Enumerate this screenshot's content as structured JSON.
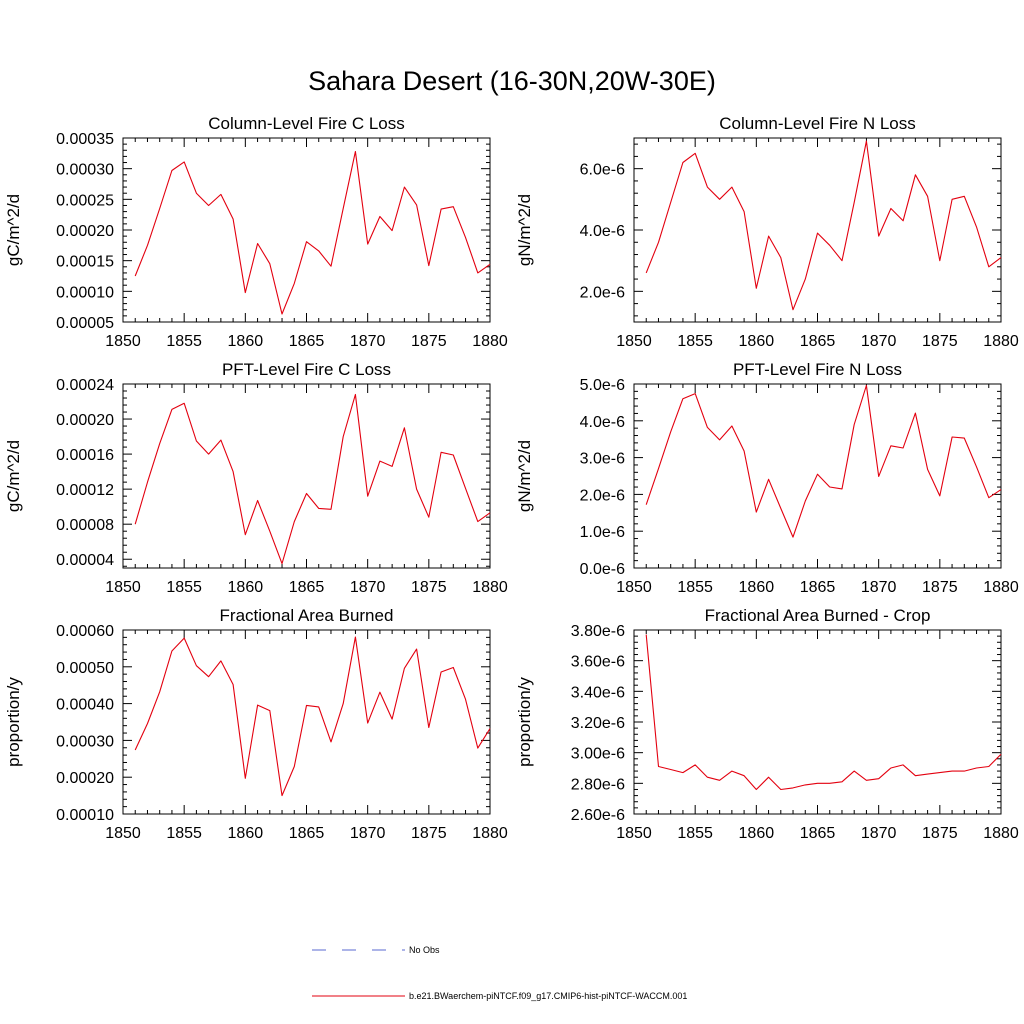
{
  "figure": {
    "title": "Sahara Desert (16-30N,20W-30E)"
  },
  "legend": {
    "obs_label": "No Obs",
    "model_label": "b.e21.BWaerchem-piNTCF.f09_g17.CMIP6-hist-piNTCF-WACCM.001",
    "obs_color": "#5a6ad0",
    "model_color": "#e3000f"
  },
  "chart_data": [
    {
      "type": "line",
      "title": "Column-Level Fire C Loss",
      "ylabel": "gC/m^2/d",
      "xlim": [
        1850,
        1880
      ],
      "ylim": [
        5e-05,
        0.00035
      ],
      "xticks": [
        1850,
        1855,
        1860,
        1865,
        1870,
        1875,
        1880
      ],
      "xtick_labels": [
        "1850",
        "1855",
        "1860",
        "1865",
        "1870",
        "1875",
        "1880"
      ],
      "yticks": [
        5e-05,
        0.0001,
        0.00015,
        0.0002,
        0.00025,
        0.0003,
        0.00035
      ],
      "ytick_labels": [
        "0.00005",
        "0.00010",
        "0.00015",
        "0.00020",
        "0.00025",
        "0.00030",
        "0.00035"
      ],
      "series": [
        {
          "name": "b.e21.BWaerchem-piNTCF.f09_g17.CMIP6-hist-piNTCF-WACCM.001",
          "color": "#e3000f",
          "x": [
            1851,
            1852,
            1853,
            1854,
            1855,
            1856,
            1857,
            1858,
            1859,
            1860,
            1861,
            1862,
            1863,
            1864,
            1865,
            1866,
            1867,
            1868,
            1869,
            1870,
            1871,
            1872,
            1873,
            1874,
            1875,
            1876,
            1877,
            1878,
            1879,
            1880
          ],
          "y": [
            0.000125,
            0.000175,
            0.000235,
            0.000297,
            0.000311,
            0.00026,
            0.00024,
            0.000258,
            0.000218,
            9.8e-05,
            0.000178,
            0.000145,
            6.3e-05,
            0.000113,
            0.000181,
            0.000166,
            0.000141,
            0.000235,
            0.000328,
            0.000177,
            0.000222,
            0.000199,
            0.00027,
            0.000241,
            0.000142,
            0.000234,
            0.000238,
            0.000188,
            0.00013,
            0.000144
          ]
        }
      ]
    },
    {
      "type": "line",
      "title": "Column-Level Fire N Loss",
      "ylabel": "gN/m^2/d",
      "xlim": [
        1850,
        1880
      ],
      "ylim": [
        1e-06,
        7e-06
      ],
      "xticks": [
        1850,
        1855,
        1860,
        1865,
        1870,
        1875,
        1880
      ],
      "xtick_labels": [
        "1850",
        "1855",
        "1860",
        "1865",
        "1870",
        "1875",
        "1880"
      ],
      "yticks": [
        2e-06,
        4e-06,
        6e-06
      ],
      "ytick_labels": [
        "2.0e-6",
        "4.0e-6",
        "6.0e-6"
      ],
      "series": [
        {
          "name": "b.e21.BWaerchem-piNTCF.f09_g17.CMIP6-hist-piNTCF-WACCM.001",
          "color": "#e3000f",
          "x": [
            1851,
            1852,
            1853,
            1854,
            1855,
            1856,
            1857,
            1858,
            1859,
            1860,
            1861,
            1862,
            1863,
            1864,
            1865,
            1866,
            1867,
            1868,
            1869,
            1870,
            1871,
            1872,
            1873,
            1874,
            1875,
            1876,
            1877,
            1878,
            1879,
            1880
          ],
          "y": [
            2.6e-06,
            3.6e-06,
            4.9e-06,
            6.2e-06,
            6.5e-06,
            5.4e-06,
            5e-06,
            5.4e-06,
            4.6e-06,
            2.1e-06,
            3.8e-06,
            3.1e-06,
            1.4e-06,
            2.4e-06,
            3.9e-06,
            3.5e-06,
            3e-06,
            4.9e-06,
            6.9e-06,
            3.8e-06,
            4.7e-06,
            4.3e-06,
            5.8e-06,
            5.1e-06,
            3e-06,
            5e-06,
            5.1e-06,
            4.1e-06,
            2.8e-06,
            3.1e-06
          ]
        }
      ]
    },
    {
      "type": "line",
      "title": "PFT-Level Fire C Loss",
      "ylabel": "gC/m^2/d",
      "xlim": [
        1850,
        1880
      ],
      "ylim": [
        3e-05,
        0.00024
      ],
      "xticks": [
        1850,
        1855,
        1860,
        1865,
        1870,
        1875,
        1880
      ],
      "xtick_labels": [
        "1850",
        "1855",
        "1860",
        "1865",
        "1870",
        "1875",
        "1880"
      ],
      "yticks": [
        4e-05,
        8e-05,
        0.00012,
        0.00016,
        0.0002,
        0.00024
      ],
      "ytick_labels": [
        "0.00004",
        "0.00008",
        "0.00012",
        "0.00016",
        "0.00020",
        "0.00024"
      ],
      "series": [
        {
          "name": "b.e21.BWaerchem-piNTCF.f09_g17.CMIP6-hist-piNTCF-WACCM.001",
          "color": "#e3000f",
          "x": [
            1851,
            1852,
            1853,
            1854,
            1855,
            1856,
            1857,
            1858,
            1859,
            1860,
            1861,
            1862,
            1863,
            1864,
            1865,
            1866,
            1867,
            1868,
            1869,
            1870,
            1871,
            1872,
            1873,
            1874,
            1875,
            1876,
            1877,
            1878,
            1879,
            1880
          ],
          "y": [
            8e-05,
            0.000128,
            0.000172,
            0.000211,
            0.000218,
            0.000175,
            0.00016,
            0.000176,
            0.00014,
            6.8e-05,
            0.000107,
            7.2e-05,
            3.5e-05,
            8.3e-05,
            0.000115,
            9.8e-05,
            9.7e-05,
            0.00018,
            0.000228,
            0.000112,
            0.000152,
            0.000146,
            0.00019,
            0.00012,
            8.8e-05,
            0.000162,
            0.000159,
            0.000121,
            8.3e-05,
            9.3e-05
          ]
        }
      ]
    },
    {
      "type": "line",
      "title": "PFT-Level Fire N Loss",
      "ylabel": "gN/m^2/d",
      "xlim": [
        1850,
        1880
      ],
      "ylim": [
        0,
        5e-06
      ],
      "xticks": [
        1850,
        1855,
        1860,
        1865,
        1870,
        1875,
        1880
      ],
      "xtick_labels": [
        "1850",
        "1855",
        "1860",
        "1865",
        "1870",
        "1875",
        "1880"
      ],
      "yticks": [
        0,
        1e-06,
        2e-06,
        3e-06,
        4e-06,
        5e-06
      ],
      "ytick_labels": [
        "0.0e-6",
        "1.0e-6",
        "2.0e-6",
        "3.0e-6",
        "4.0e-6",
        "5.0e-6"
      ],
      "series": [
        {
          "name": "b.e21.BWaerchem-piNTCF.f09_g17.CMIP6-hist-piNTCF-WACCM.001",
          "color": "#e3000f",
          "x": [
            1851,
            1852,
            1853,
            1854,
            1855,
            1856,
            1857,
            1858,
            1859,
            1860,
            1861,
            1862,
            1863,
            1864,
            1865,
            1866,
            1867,
            1868,
            1869,
            1870,
            1871,
            1872,
            1873,
            1874,
            1875,
            1876,
            1877,
            1878,
            1879,
            1880
          ],
          "y": [
            1.72e-06,
            2.7e-06,
            3.7e-06,
            4.6e-06,
            4.74e-06,
            3.82e-06,
            3.48e-06,
            3.86e-06,
            3.18e-06,
            1.52e-06,
            2.41e-06,
            1.62e-06,
            8.4e-07,
            1.82e-06,
            2.55e-06,
            2.2e-06,
            2.15e-06,
            3.9e-06,
            4.96e-06,
            2.49e-06,
            3.32e-06,
            3.26e-06,
            4.21e-06,
            2.68e-06,
            1.96e-06,
            3.56e-06,
            3.53e-06,
            2.75e-06,
            1.91e-06,
            2.13e-06
          ]
        }
      ]
    },
    {
      "type": "line",
      "title": "Fractional Area Burned",
      "ylabel": "proportion/y",
      "xlim": [
        1850,
        1880
      ],
      "ylim": [
        0.0001,
        0.0006
      ],
      "xticks": [
        1850,
        1855,
        1860,
        1865,
        1870,
        1875,
        1880
      ],
      "xtick_labels": [
        "1850",
        "1855",
        "1860",
        "1865",
        "1870",
        "1875",
        "1880"
      ],
      "yticks": [
        0.0001,
        0.0002,
        0.0003,
        0.0004,
        0.0005,
        0.0006
      ],
      "ytick_labels": [
        "0.00010",
        "0.00020",
        "0.00030",
        "0.00040",
        "0.00050",
        "0.00060"
      ],
      "series": [
        {
          "name": "b.e21.BWaerchem-piNTCF.f09_g17.CMIP6-hist-piNTCF-WACCM.001",
          "color": "#e3000f",
          "x": [
            1851,
            1852,
            1853,
            1854,
            1855,
            1856,
            1857,
            1858,
            1859,
            1860,
            1861,
            1862,
            1863,
            1864,
            1865,
            1866,
            1867,
            1868,
            1869,
            1870,
            1871,
            1872,
            1873,
            1874,
            1875,
            1876,
            1877,
            1878,
            1879,
            1880
          ],
          "y": [
            0.000274,
            0.000346,
            0.000432,
            0.000543,
            0.000578,
            0.000503,
            0.000473,
            0.000516,
            0.000452,
            0.000197,
            0.000396,
            0.000381,
            0.00015,
            0.000229,
            0.000395,
            0.000391,
            0.000296,
            0.0004,
            0.000581,
            0.000347,
            0.000431,
            0.000358,
            0.000496,
            0.000548,
            0.000335,
            0.000486,
            0.000498,
            0.000412,
            0.000279,
            0.000332
          ]
        }
      ]
    },
    {
      "type": "line",
      "title": "Fractional Area Burned - Crop",
      "ylabel": "proportion/y",
      "xlim": [
        1850,
        1880
      ],
      "ylim": [
        2.6e-06,
        3.8e-06
      ],
      "xticks": [
        1850,
        1855,
        1860,
        1865,
        1870,
        1875,
        1880
      ],
      "xtick_labels": [
        "1850",
        "1855",
        "1860",
        "1865",
        "1870",
        "1875",
        "1880"
      ],
      "yticks": [
        2.6e-06,
        2.8e-06,
        3e-06,
        3.2e-06,
        3.4e-06,
        3.6e-06,
        3.8e-06
      ],
      "ytick_labels": [
        "2.60e-6",
        "2.80e-6",
        "3.00e-6",
        "3.20e-6",
        "3.40e-6",
        "3.60e-6",
        "3.80e-6"
      ],
      "series": [
        {
          "name": "b.e21.BWaerchem-piNTCF.f09_g17.CMIP6-hist-piNTCF-WACCM.001",
          "color": "#e3000f",
          "x": [
            1851,
            1852,
            1853,
            1854,
            1855,
            1856,
            1857,
            1858,
            1859,
            1860,
            1861,
            1862,
            1863,
            1864,
            1865,
            1866,
            1867,
            1868,
            1869,
            1870,
            1871,
            1872,
            1873,
            1874,
            1875,
            1876,
            1877,
            1878,
            1879,
            1880
          ],
          "y": [
            3.77e-06,
            2.91e-06,
            2.89e-06,
            2.87e-06,
            2.92e-06,
            2.84e-06,
            2.82e-06,
            2.88e-06,
            2.85e-06,
            2.76e-06,
            2.84e-06,
            2.76e-06,
            2.77e-06,
            2.79e-06,
            2.8e-06,
            2.8e-06,
            2.81e-06,
            2.88e-06,
            2.82e-06,
            2.83e-06,
            2.9e-06,
            2.92e-06,
            2.85e-06,
            2.86e-06,
            2.87e-06,
            2.88e-06,
            2.88e-06,
            2.9e-06,
            2.91e-06,
            2.99e-06
          ]
        }
      ]
    }
  ]
}
